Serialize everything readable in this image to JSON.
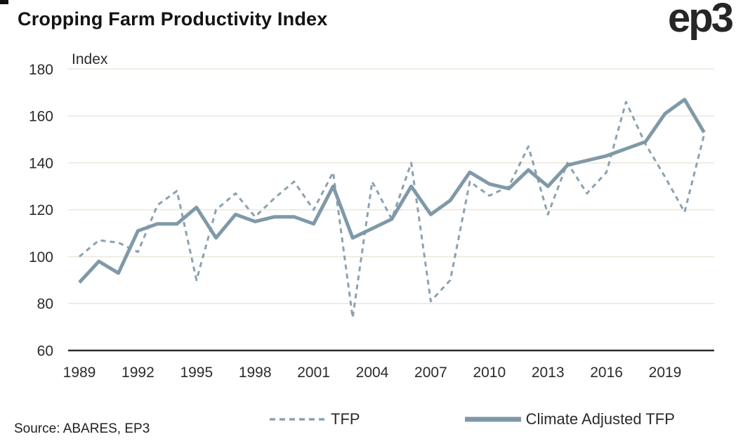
{
  "header": {
    "title": "Cropping Farm Productivity Index",
    "logo": "ep3"
  },
  "footer": {
    "source": "Source: ABARES, EP3"
  },
  "colors": {
    "line_dashed": "#8aa2b0",
    "line_solid": "#8099a8",
    "gridline": "#ece8da",
    "axis": "#2e2e2e",
    "tick_text": "#2b2b2b",
    "title_text": "#141414"
  },
  "chart_data": {
    "type": "line",
    "title": "Cropping Farm Productivity Index",
    "ylabel": "Index",
    "xlabel": "",
    "ylim": [
      60,
      180
    ],
    "yticks": [
      60,
      80,
      100,
      120,
      140,
      160,
      180
    ],
    "xticks": [
      1989,
      1992,
      1995,
      1998,
      2001,
      2004,
      2007,
      2010,
      2013,
      2016,
      2019
    ],
    "grid": "horizontal",
    "legend_position": "bottom",
    "x": [
      1989,
      1990,
      1991,
      1992,
      1993,
      1994,
      1995,
      1996,
      1997,
      1998,
      1999,
      2000,
      2001,
      2002,
      2003,
      2004,
      2005,
      2006,
      2007,
      2008,
      2009,
      2010,
      2011,
      2012,
      2013,
      2014,
      2015,
      2016,
      2017,
      2018,
      2019,
      2020,
      2021
    ],
    "series": [
      {
        "name": "TFP",
        "style": "dashed",
        "color": "#8aa2b0",
        "values": [
          100,
          107,
          106,
          102,
          122,
          128,
          90,
          120,
          127,
          117,
          125,
          132,
          120,
          136,
          74,
          132,
          116,
          140,
          81,
          90,
          132,
          126,
          130,
          147,
          118,
          140,
          127,
          136,
          166,
          148,
          134,
          119,
          152
        ]
      },
      {
        "name": "Climate Adjusted TFP",
        "style": "solid",
        "color": "#8099a8",
        "values": [
          89,
          98,
          93,
          111,
          114,
          114,
          121,
          108,
          118,
          115,
          117,
          117,
          114,
          130,
          108,
          112,
          116,
          130,
          118,
          124,
          136,
          131,
          129,
          137,
          130,
          139,
          141,
          143,
          146,
          149,
          161,
          167,
          153
        ]
      }
    ]
  }
}
